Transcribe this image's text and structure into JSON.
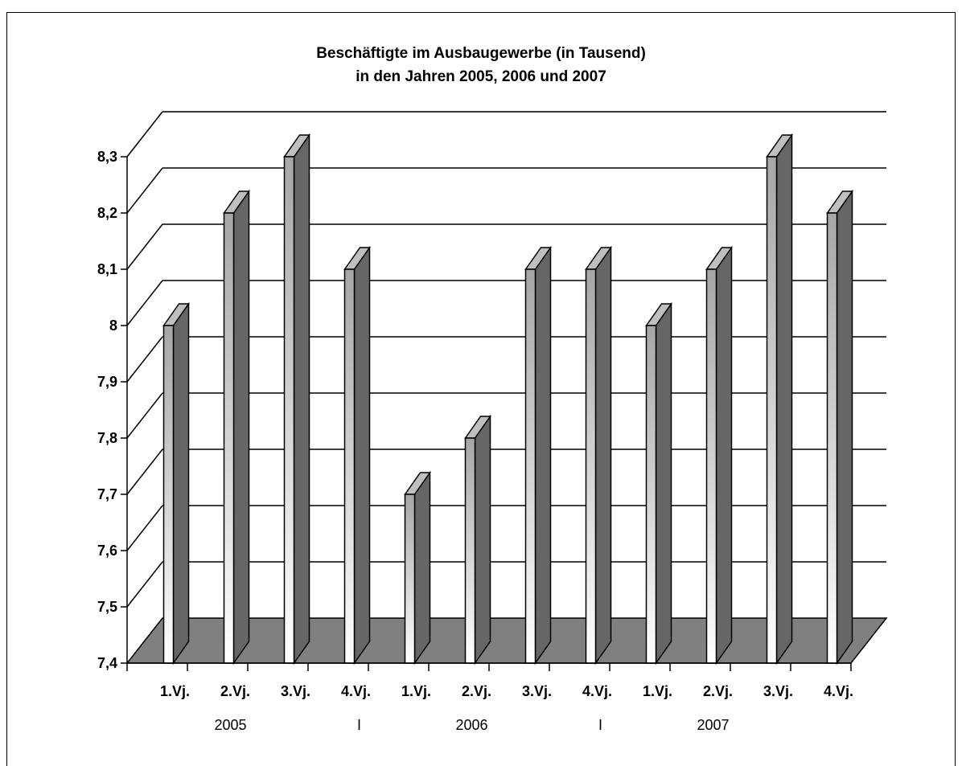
{
  "chart_data": {
    "type": "bar",
    "title": [
      "Beschäftigte im Ausbaugewerbe (in Tausend)",
      "in den Jahren 2005, 2006 und 2007"
    ],
    "categories": [
      "1.Vj.",
      "2.Vj.",
      "3.Vj.",
      "4.Vj.",
      "1.Vj.",
      "2.Vj.",
      "3.Vj.",
      "4.Vj.",
      "1.Vj.",
      "2.Vj.",
      "3.Vj.",
      "4.Vj."
    ],
    "groups": [
      {
        "label": "2005",
        "start": 0,
        "end": 3
      },
      {
        "label": "2006",
        "start": 4,
        "end": 7
      },
      {
        "label": "2007",
        "start": 8,
        "end": 11
      }
    ],
    "group_separator_label": "I",
    "values": [
      8.0,
      8.2,
      8.3,
      8.1,
      7.7,
      7.8,
      8.1,
      8.1,
      8.0,
      8.1,
      8.3,
      8.2
    ],
    "ylim": [
      7.4,
      8.3
    ],
    "yticks": [
      "7,4",
      "7,5",
      "7,6",
      "7,7",
      "7,8",
      "7,9",
      "8",
      "8,1",
      "8,2",
      "8,3"
    ],
    "ytick_values": [
      7.4,
      7.5,
      7.6,
      7.7,
      7.8,
      7.9,
      8.0,
      8.1,
      8.2,
      8.3
    ],
    "xlabel": "",
    "ylabel": "",
    "grid": true,
    "style": "3d",
    "colors": {
      "floor": "#808080",
      "bar_front_light": "#ffffff",
      "bar_front_dark": "#a6a6a6",
      "bar_side": "#666666",
      "bar_top": "#bfbfbf",
      "grid": "#000000"
    }
  }
}
